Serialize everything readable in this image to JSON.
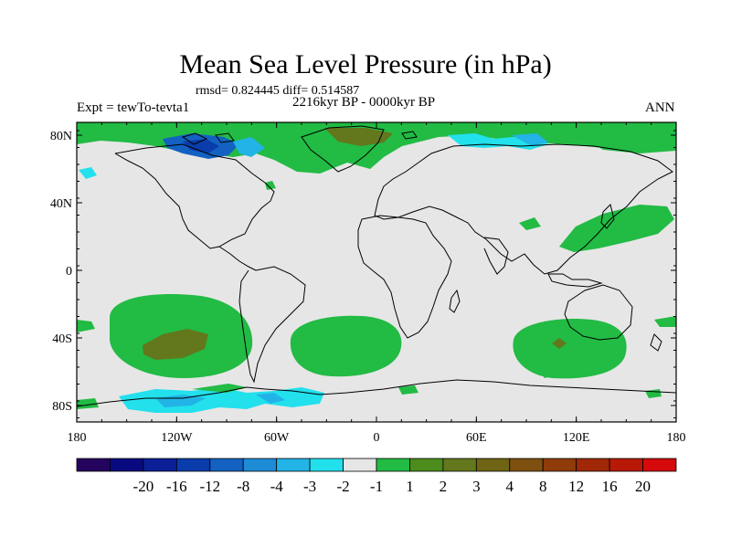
{
  "header": {
    "title": "Mean Sea Level Pressure (in hPa)",
    "stats": "rmsd= 0.824445 diff= 0.514587",
    "experiment": "Expt = tewTo-tevta1",
    "period": "2216kyr BP - 0000kyr BP",
    "season": "ANN"
  },
  "axes": {
    "y_ticks": [
      "80N",
      "40N",
      "0",
      "40S",
      "80S"
    ],
    "x_ticks": [
      "180",
      "120W",
      "60W",
      "0",
      "60E",
      "120E",
      "180"
    ]
  },
  "colorbar": {
    "colors": [
      "#24045e",
      "#0a0a80",
      "#0b1f96",
      "#0a3cab",
      "#1362c2",
      "#1e8bd6",
      "#22b4e6",
      "#22e0ec",
      "#e6e6e6",
      "#22bb44",
      "#4b8c1c",
      "#63771c",
      "#6f6414",
      "#7e5010",
      "#8e3c0a",
      "#a02808",
      "#b81806",
      "#d60a0a"
    ],
    "labels": [
      "-20",
      "-16",
      "-12",
      "-8",
      "-4",
      "-3",
      "-2",
      "-1",
      "1",
      "2",
      "3",
      "4",
      "8",
      "12",
      "16",
      "20"
    ]
  },
  "palette": {
    "neutral": "#e6e6e6",
    "green": "#22bb44",
    "olive": "#63771c",
    "cyan": "#22e0ec",
    "lightblue": "#22b4e6",
    "blue": "#1362c2",
    "darkblue": "#0a3cab",
    "coast": "#000000"
  }
}
